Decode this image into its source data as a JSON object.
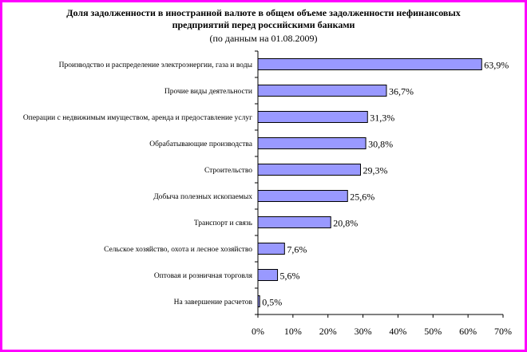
{
  "chart_data": {
    "type": "bar",
    "orientation": "horizontal",
    "title_line1": "Доля задолженности в иностранной валюте в общем объеме задолженности нефинансовых",
    "title_line2": "предприятий перед российскими банками",
    "subtitle": "(по данным на 01.08.2009)",
    "categories": [
      "Производство и распределение электроэнергии, газа и воды",
      "Прочие виды деятельности",
      "Операции с недвижимым имуществом, аренда и предоставление услуг",
      "Обрабатывающие производства",
      "Строительство",
      "Добыча полезных ископаемых",
      "Транспорт и связь",
      "Сельское хозяйство, охота и лесное хозяйство",
      "Оптовая и розничная торговля",
      "На завершение расчетов"
    ],
    "values": [
      63.9,
      36.7,
      31.3,
      30.8,
      29.3,
      25.6,
      20.8,
      7.6,
      5.6,
      0.5
    ],
    "value_labels": [
      "63,9%",
      "36,7%",
      "31,3%",
      "30,8%",
      "29,3%",
      "25,6%",
      "20,8%",
      "7,6%",
      "5,6%",
      "0,5%"
    ],
    "xlim": [
      0,
      70
    ],
    "xticks": [
      0,
      10,
      20,
      30,
      40,
      50,
      60,
      70
    ],
    "xtick_labels": [
      "0%",
      "10%",
      "20%",
      "30%",
      "40%",
      "50%",
      "60%",
      "70%"
    ],
    "grid": false,
    "legend": "none",
    "bar_color": "#9999ff",
    "bar_edge_color": "#000000",
    "frame_color": "#ff00ff"
  }
}
